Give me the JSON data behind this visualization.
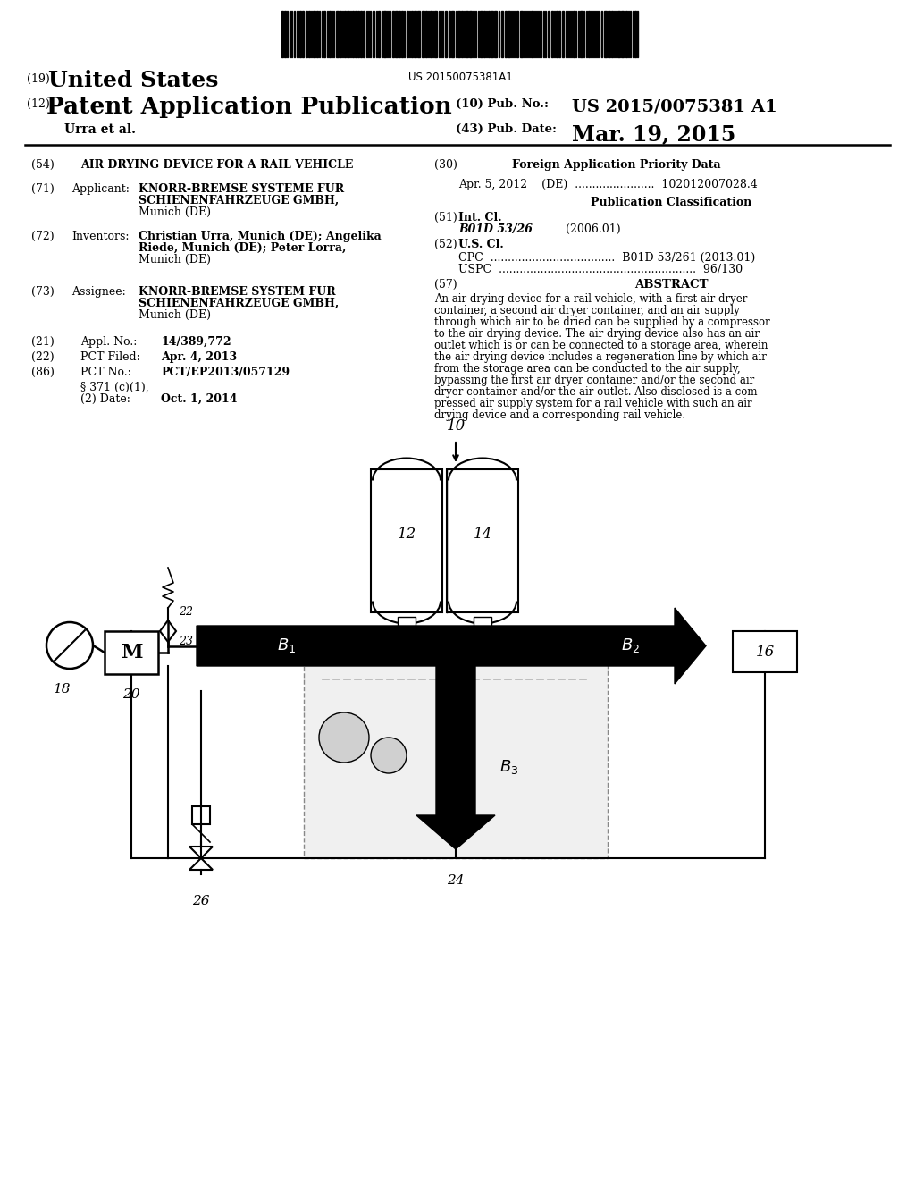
{
  "bg_color": "#ffffff",
  "barcode_text": "US 20150075381A1",
  "title19": "(19)",
  "title19b": "United States",
  "title12": "(12)",
  "title12b": "Patent Application Publication",
  "authors": "Urra et al.",
  "pub_no_label": "(10) Pub. No.:",
  "pub_no": "US 2015/0075381 A1",
  "pub_date_label": "(43) Pub. Date:",
  "pub_date": "Mar. 19, 2015",
  "section54_label": "(54)",
  "section54": "AIR DRYING DEVICE FOR A RAIL VEHICLE",
  "section71_label": "(71)",
  "section71_key": "Applicant:",
  "section71_val1": "KNORR-BREMSE SYSTEME FUR",
  "section71_val2": "SCHIENENFAHRZEUGE GMBH,",
  "section71_val3": "Munich (DE)",
  "section72_label": "(72)",
  "section72_key": "Inventors:",
  "section72_val1": "Christian Urra, Munich (DE); Angelika",
  "section72_val2": "Riede, Munich (DE); Peter Lorra,",
  "section72_val3": "Munich (DE)",
  "section73_label": "(73)",
  "section73_key": "Assignee:",
  "section73_val1": "KNORR-BREMSE SYSTEM FUR",
  "section73_val2": "SCHIENENFAHRZEUGE GMBH,",
  "section73_val3": "Munich (DE)",
  "section21_label": "(21)",
  "section21_key": "Appl. No.:",
  "section21_val": "14/389,772",
  "section22_label": "(22)",
  "section22_key": "PCT Filed:",
  "section22_val": "Apr. 4, 2013",
  "section86_label": "(86)",
  "section86_key": "PCT No.:",
  "section86_val": "PCT/EP2013/057129",
  "section86b1": "§ 371 (c)(1),",
  "section86b2": "(2) Date:",
  "section86b_val": "Oct. 1, 2014",
  "section30_header": "Foreign Application Priority Data",
  "section30_label": "(30)",
  "section30_data": "Apr. 5, 2012    (DE)  .......................  102012007028.4",
  "pub_class_header": "Publication Classification",
  "section51_label": "(51)",
  "section51_key": "Int. Cl.",
  "section51_val": "B01D 53/26",
  "section51_year": "(2006.01)",
  "section52_label": "(52)",
  "section52_key": "U.S. Cl.",
  "section52_cpc": "CPC  ....................................  B01D 53/261 (2013.01)",
  "section52_uspc": "USPC  .........................................................  96/130",
  "section57_label": "(57)",
  "section57_header": "ABSTRACT",
  "abstract_lines": [
    "An air drying device for a rail vehicle, with a first air dryer",
    "container, a second air dryer container, and an air supply",
    "through which air to be dried can be supplied by a compressor",
    "to the air drying device. The air drying device also has an air",
    "outlet which is or can be connected to a storage area, wherein",
    "the air drying device includes a regeneration line by which air",
    "from the storage area can be conducted to the air supply,",
    "bypassing the first air dryer container and/or the second air",
    "dryer container and/or the air outlet. Also disclosed is a com-",
    "pressed air supply system for a rail vehicle with such an air",
    "drying device and a corresponding rail vehicle."
  ]
}
